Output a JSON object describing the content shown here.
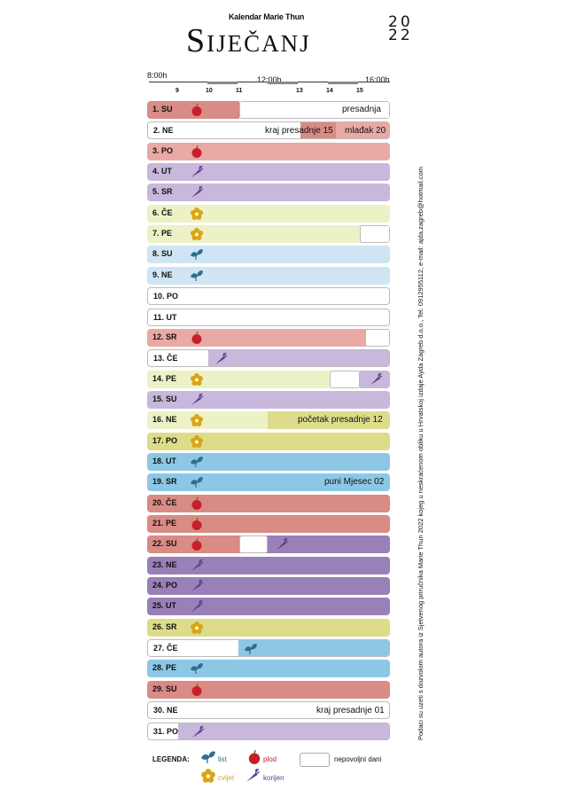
{
  "header": {
    "subtitle": "Kalendar Marie Thun",
    "title": "Siječanj",
    "year_top": "20",
    "year_bottom": "22"
  },
  "timeline": {
    "left": "8:00h",
    "mid": "12:00h",
    "right": "16:00h",
    "ticks": [
      "9",
      "10",
      "11",
      "13",
      "14",
      "15"
    ]
  },
  "colors": {
    "fruit": "#e9a9a4",
    "fruit_dark": "#d98b85",
    "root": "#c7b8dc",
    "root_dark": "#9a80b8",
    "flower": "#edf1c6",
    "flower_dark": "#dcdc8a",
    "leaf": "#cfe5f3",
    "leaf_dark": "#8cc8e6"
  },
  "days": [
    {
      "label": "1. SU",
      "note": "presadnja"
    },
    {
      "label": "2. NE",
      "note": "kraj presadnje 15",
      "note2": "mlađak 20"
    },
    {
      "label": "3. PO"
    },
    {
      "label": "4. UT"
    },
    {
      "label": "5. SR"
    },
    {
      "label": "6. ČE"
    },
    {
      "label": "7. PE"
    },
    {
      "label": "8. SU"
    },
    {
      "label": "9. NE"
    },
    {
      "label": "10. PO"
    },
    {
      "label": "11. UT"
    },
    {
      "label": "12. SR"
    },
    {
      "label": "13. ČE"
    },
    {
      "label": "14. PE"
    },
    {
      "label": "15. SU"
    },
    {
      "label": "16. NE",
      "note": "početak presadnje 12"
    },
    {
      "label": "17. PO"
    },
    {
      "label": "18. UT"
    },
    {
      "label": "19. SR",
      "note": "puni Mjesec 02"
    },
    {
      "label": "20. ČE"
    },
    {
      "label": "21. PE"
    },
    {
      "label": "22. SU"
    },
    {
      "label": "23. NE"
    },
    {
      "label": "24. PO"
    },
    {
      "label": "25. UT"
    },
    {
      "label": "26. SR"
    },
    {
      "label": "27. ČE"
    },
    {
      "label": "28. PE"
    },
    {
      "label": "29. SU"
    },
    {
      "label": "30. NE",
      "note": "kraj presadnje 01"
    },
    {
      "label": "31. PO"
    }
  ],
  "legend": {
    "title": "LEGENDA:",
    "leaf": "list",
    "fruit": "plod",
    "bad": "nepovoljni dani",
    "flower": "cvijet",
    "root": "korijen"
  },
  "sidebar": "Podaci su uzeti s dozvolom autora iz Sjetvenog priručnika Marie Thun 2022 kojeg u neskraćenom obliku u Hrvatskoj izdaje Ayda Zagreb d.o.o., Tel. 0912955112, e-mail: ajda.zagreb@hotmail.com"
}
